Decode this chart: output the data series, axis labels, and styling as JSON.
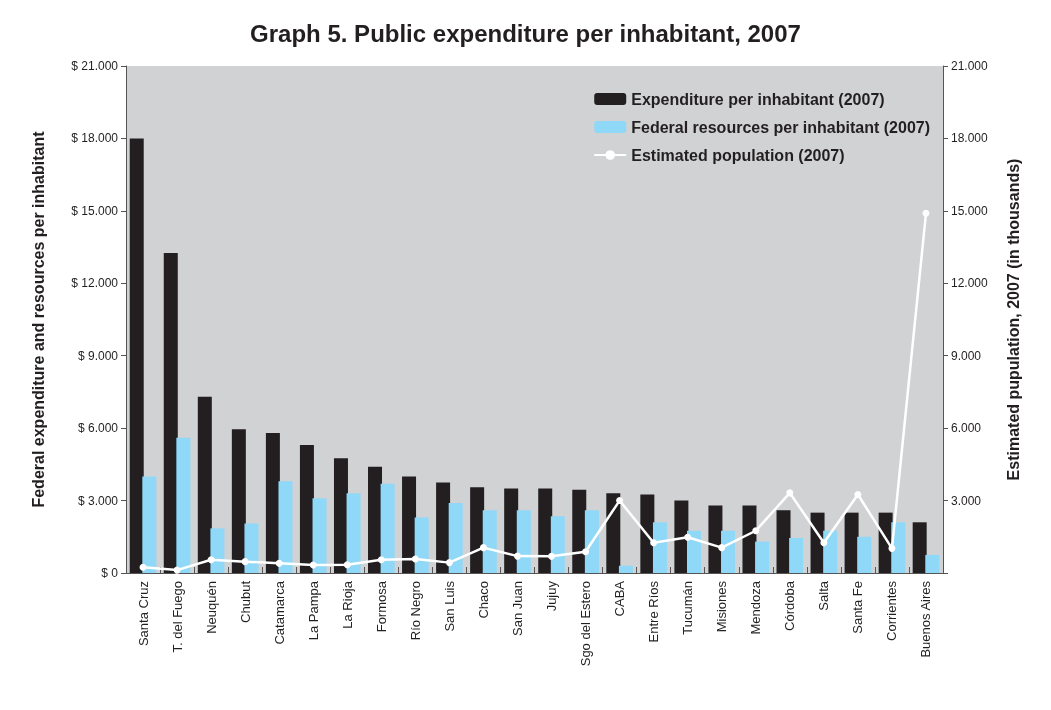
{
  "chart_data": {
    "type": "bar",
    "title": "Graph 5. Public expenditure per inhabitant, 2007",
    "ylabel": "Federal expenditure and resources per inhabitant",
    "y2label": "Estimated pupulation, 2007 (in thousands)",
    "categories": [
      "Santa Cruz",
      "T. del Fuego",
      "Neuquén",
      "Chubut",
      "Catamarca",
      "La Pampa",
      "La Rioja",
      "Formosa",
      "Río Negro",
      "San Luis",
      "Chaco",
      "San Juan",
      "Jujuy",
      "Sgo del Estero",
      "CABA",
      "Entre Ríos",
      "Tucumán",
      "Misiones",
      "Mendoza",
      "Córdoba",
      "Salta",
      "Santa Fe",
      "Corrientes",
      "Buenos Aires"
    ],
    "series": [
      {
        "name": "Expenditure per inhabitant (2007)",
        "color": "#231f20",
        "values": [
          18000,
          13250,
          7300,
          5950,
          5800,
          5300,
          4750,
          4400,
          4000,
          3750,
          3550,
          3500,
          3500,
          3450,
          3300,
          3250,
          3000,
          2800,
          2800,
          2600,
          2500,
          2500,
          2500,
          2100
        ]
      },
      {
        "name": "Federal resources per inhabitant (2007)",
        "color": "#8fd8f8",
        "values": [
          4000,
          5600,
          1850,
          2050,
          3800,
          3100,
          3300,
          3700,
          2300,
          2900,
          2600,
          2600,
          2350,
          2600,
          300,
          2100,
          1750,
          1750,
          1300,
          1450,
          1750,
          1500,
          2100,
          750
        ]
      },
      {
        "name": "Estimated population (2007)",
        "type": "line",
        "axis": "y2",
        "color": "#ffffff",
        "values": [
          240,
          120,
          550,
          470,
          400,
          330,
          340,
          550,
          580,
          430,
          1050,
          700,
          690,
          880,
          3000,
          1250,
          1480,
          1050,
          1750,
          3320,
          1250,
          3250,
          1020,
          14900
        ]
      }
    ],
    "ylim": [
      0,
      21000
    ],
    "yticks": [
      {
        "value": 0,
        "label": "$ 0"
      },
      {
        "value": 3000,
        "label": "$ 3.000"
      },
      {
        "value": 6000,
        "label": "$ 6.000"
      },
      {
        "value": 9000,
        "label": "$ 9.000"
      },
      {
        "value": 12000,
        "label": "$ 12.000"
      },
      {
        "value": 15000,
        "label": "$ 15.000"
      },
      {
        "value": 18000,
        "label": "$ 18.000"
      },
      {
        "value": 21000,
        "label": "$ 21.000"
      }
    ],
    "y2lim": [
      0,
      21000
    ],
    "y2ticks": [
      {
        "value": 0,
        "label": null
      },
      {
        "value": 3000,
        "label": "3.000"
      },
      {
        "value": 6000,
        "label": "6.000"
      },
      {
        "value": 9000,
        "label": "9.000"
      },
      {
        "value": 12000,
        "label": "12.000"
      },
      {
        "value": 15000,
        "label": "15.000"
      },
      {
        "value": 18000,
        "label": "18.000"
      },
      {
        "value": 21000,
        "label": "21.000"
      }
    ],
    "grid": false,
    "legend": "top right",
    "marker": "circle",
    "line_style": "solid"
  }
}
